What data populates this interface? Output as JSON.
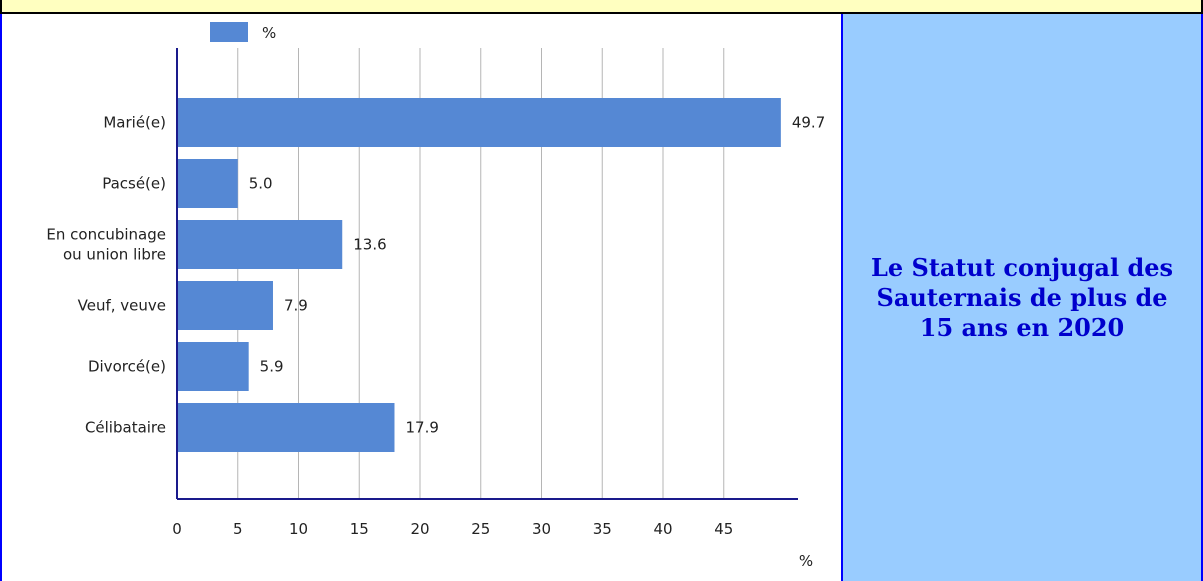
{
  "title": "Le Statut conjugal des Sauternais de plus de 15 ans en 2020",
  "colors": {
    "bar": "#5588d4",
    "axis": "#1a1a8c",
    "grid": "#b5b5b5",
    "title_bg": "#99ccff",
    "title_text": "#0000cc",
    "border": "#0000ff",
    "top_strip": "#ffffc0"
  },
  "chart_data": {
    "type": "bar",
    "orientation": "horizontal",
    "categories": [
      "Marié(e)",
      "Pacsé(e)",
      "En concubinage ou union libre",
      "Veuf, veuve",
      "Divorcé(e)",
      "Célibataire"
    ],
    "category_lines": [
      [
        "Marié(e)"
      ],
      [
        "Pacsé(e)"
      ],
      [
        "En concubinage",
        "ou union libre"
      ],
      [
        "Veuf, veuve"
      ],
      [
        "Divorcé(e)"
      ],
      [
        "Célibataire"
      ]
    ],
    "series": [
      {
        "name": "%",
        "values": [
          49.7,
          5.0,
          13.6,
          7.9,
          5.9,
          17.9
        ]
      }
    ],
    "value_labels": [
      "49.7",
      "5.0",
      "13.6",
      "7.9",
      "5.9",
      "17.9"
    ],
    "xticks": [
      0,
      5,
      10,
      15,
      20,
      25,
      30,
      35,
      40,
      45
    ],
    "xlim": [
      0,
      51
    ],
    "xlabel": "%",
    "ylabel": "",
    "grid": true,
    "legend": "top"
  }
}
